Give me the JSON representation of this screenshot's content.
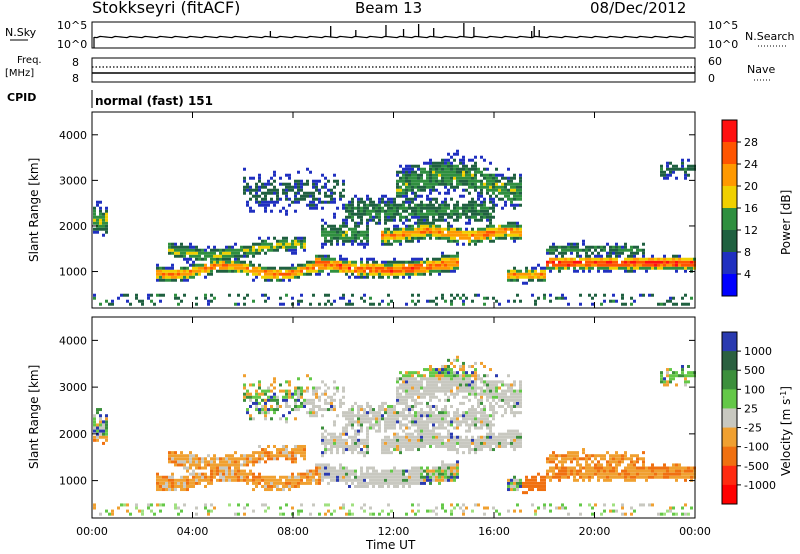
{
  "header": {
    "station": "Stokkseyri (fitACF)",
    "beam": "Beam 13",
    "date": "08/Dec/2012"
  },
  "left_labels": {
    "nsky": "N.Sky",
    "freq_line1": "Freq.",
    "freq_line2": "[MHz]",
    "cpid": "CPID"
  },
  "right_labels": {
    "nsearch": "N.Search",
    "nave": "Nave"
  },
  "scales": {
    "noise_top": "10^5",
    "noise_bottom": "10^0",
    "freq_top": "8",
    "freq_bottom": "8",
    "nave_top": "60",
    "nave_bottom": "0"
  },
  "cpid_text": "normal (fast) 151",
  "chart_data": [
    {
      "type": "line",
      "title": "N.Sky / N.Search",
      "y_scale": "log",
      "ylim": [
        1,
        100000
      ],
      "xlim": [
        0,
        24
      ],
      "description_series": [
        {
          "name": "N.Sky",
          "baseline": 1000,
          "spikes_x": [
            7.1,
            9.5,
            10.5,
            11.7,
            12.4,
            13.0,
            13.6,
            14.8,
            15.2,
            17.5,
            17.6,
            17.8
          ]
        }
      ]
    },
    {
      "type": "line",
      "title": "Freq / Nave",
      "series": [
        {
          "name": "Freq. [MHz]",
          "x": [
            0,
            24
          ],
          "values": [
            8,
            8
          ]
        },
        {
          "name": "Nave",
          "x": [
            0,
            24
          ],
          "values": [
            35,
            35
          ]
        }
      ],
      "xlim": [
        0,
        24
      ]
    },
    {
      "type": "heatmap",
      "title": "Power",
      "ylabel": "Slant Range [km]",
      "xlim": [
        0,
        24
      ],
      "ylim": [
        200,
        4500
      ],
      "yticks": [
        1000,
        2000,
        3000,
        4000
      ],
      "colorbar": {
        "label": "Power [dB]",
        "ticks": [
          4,
          8,
          12,
          16,
          20,
          24,
          28
        ],
        "range": [
          0,
          32
        ],
        "colors": [
          "#0014ff",
          "#2040c0",
          "#3a7a50",
          "#6ab04c",
          "#f0c010",
          "#f08010",
          "#ff2000"
        ]
      },
      "features": [
        {
          "x_start": 2.5,
          "x_end": 9,
          "range_center": 1000,
          "value": 22
        },
        {
          "x_start": 9,
          "x_end": 14,
          "range_center": 1100,
          "value": 24
        },
        {
          "x_start": 11.5,
          "x_end": 17,
          "range_center": 1800,
          "value": 22
        },
        {
          "x_start": 17,
          "x_end": 24,
          "range_center": 1100,
          "value": 28
        }
      ]
    },
    {
      "type": "heatmap",
      "title": "Velocity",
      "ylabel": "Slant Range [km]",
      "xlabel": "Time UT",
      "xlim": [
        0,
        24
      ],
      "ylim": [
        200,
        4500
      ],
      "yticks": [
        1000,
        2000,
        3000,
        4000
      ],
      "xticks": [
        "00:00",
        "04:00",
        "08:00",
        "12:00",
        "16:00",
        "20:00",
        "00:00"
      ],
      "colorbar": {
        "label": "Velocity [m s^-1]",
        "ticks": [
          "1000",
          "500",
          "100",
          "25",
          "-25",
          "-100",
          "-500",
          "-1000"
        ],
        "colors": [
          "#2030c0",
          "#2b7a40",
          "#5cc040",
          "#a0e080",
          "#c8c8c0",
          "#f0a030",
          "#f07010",
          "#f01010"
        ]
      }
    }
  ],
  "xaxis": {
    "label": "Time UT",
    "ticks": [
      "00:00",
      "04:00",
      "08:00",
      "12:00",
      "16:00",
      "20:00",
      "00:00"
    ]
  },
  "yaxis": {
    "label": "Slant Range [km]",
    "ticks": [
      "1000",
      "2000",
      "3000",
      "4000"
    ]
  },
  "power_bar": {
    "label": "Power [dB]",
    "ticks": [
      "28",
      "24",
      "20",
      "16",
      "12",
      "8",
      "4"
    ],
    "colors": [
      "#ff1010",
      "#ff5500",
      "#ff9900",
      "#f0d000",
      "#2f8f3f",
      "#1f6040",
      "#2030c0",
      "#0000ff"
    ]
  },
  "vel_bar": {
    "label": "Velocity [m s",
    "label_exp": "-1",
    "label_end": "]",
    "ticks": [
      "1000",
      "500",
      "100",
      "25",
      "-25",
      "-100",
      "-500",
      "-1000"
    ],
    "colors": [
      "#2a3ab0",
      "#2b6040",
      "#3c8f3c",
      "#64c848",
      "#c8c8c0",
      "#f0a030",
      "#f07010",
      "#ff2a10",
      "#ff0000"
    ]
  }
}
